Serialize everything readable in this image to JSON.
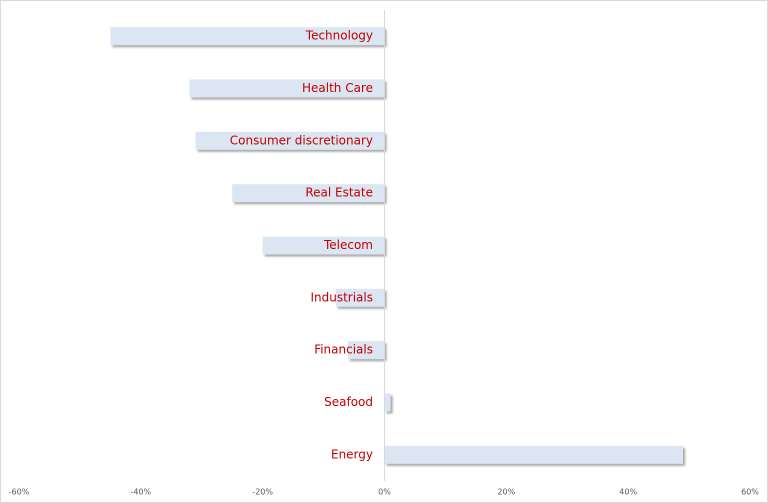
{
  "chart_data": {
    "type": "bar",
    "orientation": "horizontal",
    "categories": [
      "Technology",
      "Health Care",
      "Consumer discretionary",
      "Real Estate",
      "Telecom",
      "Industrials",
      "Financials",
      "Seafood",
      "Energy"
    ],
    "values": [
      -45,
      -32,
      -31,
      -25,
      -20,
      -8,
      -6,
      1,
      49
    ],
    "color": "#dce6f2",
    "label_color": "#c00000",
    "xlim": [
      -60,
      60
    ],
    "xticks": [
      {
        "value": -60,
        "label": "-60%"
      },
      {
        "value": -40,
        "label": "-40%"
      },
      {
        "value": -20,
        "label": "-20%"
      },
      {
        "value": 0,
        "label": "0%"
      },
      {
        "value": 20,
        "label": "20%"
      },
      {
        "value": 40,
        "label": "40%"
      },
      {
        "value": 60,
        "label": "60%"
      }
    ],
    "grid": false
  }
}
